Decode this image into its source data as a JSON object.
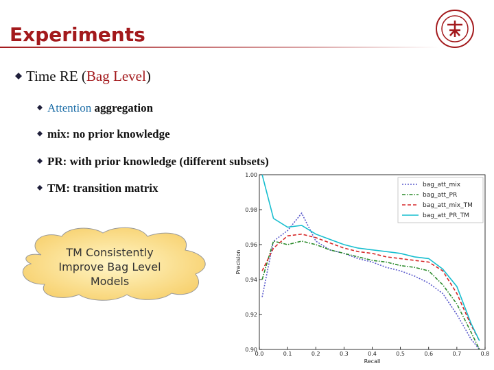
{
  "header": {
    "title": "Experiments"
  },
  "bullets": [
    {
      "parts": [
        "Time RE (",
        "Bag Level",
        ")"
      ],
      "level": 1
    },
    {
      "parts": [
        "Attention",
        " aggregation"
      ],
      "level": 2
    },
    {
      "parts": [
        "mix: no prior knowledge"
      ],
      "level": 2
    },
    {
      "parts": [
        "PR: with prior knowledge (different subsets)"
      ],
      "level": 2
    },
    {
      "parts": [
        "TM: transition matrix"
      ],
      "level": 2
    }
  ],
  "callout": {
    "lines": [
      "TM Consistently",
      "Improve Bag Level",
      "Models"
    ]
  },
  "chart_data": {
    "type": "line",
    "xlabel": "Recall",
    "ylabel": "Precision",
    "x": [
      0.01,
      0.05,
      0.1,
      0.15,
      0.2,
      0.25,
      0.3,
      0.35,
      0.4,
      0.45,
      0.5,
      0.55,
      0.6,
      0.65,
      0.7,
      0.75,
      0.78
    ],
    "series": [
      {
        "name": "bag_att_mix",
        "color": "#5a5acc",
        "dash": "2,2",
        "values": [
          0.93,
          0.962,
          0.968,
          0.978,
          0.962,
          0.957,
          0.955,
          0.952,
          0.95,
          0.947,
          0.945,
          0.942,
          0.938,
          0.932,
          0.92,
          0.906,
          0.9
        ]
      },
      {
        "name": "bag_att_PR",
        "color": "#2a8a2a",
        "dash": "5,2,1.5,2",
        "values": [
          0.94,
          0.962,
          0.96,
          0.962,
          0.96,
          0.957,
          0.955,
          0.953,
          0.951,
          0.95,
          0.948,
          0.947,
          0.945,
          0.937,
          0.926,
          0.91,
          0.9
        ]
      },
      {
        "name": "bag_att_mix_TM",
        "color": "#d62728",
        "dash": "5,3",
        "values": [
          0.945,
          0.958,
          0.965,
          0.966,
          0.964,
          0.961,
          0.958,
          0.956,
          0.955,
          0.953,
          0.952,
          0.951,
          0.95,
          0.945,
          0.932,
          0.914,
          0.905
        ]
      },
      {
        "name": "bag_att_PR_TM",
        "color": "#17becf",
        "dash": "",
        "values": [
          1.0,
          0.975,
          0.97,
          0.971,
          0.966,
          0.963,
          0.96,
          0.958,
          0.957,
          0.956,
          0.955,
          0.953,
          0.952,
          0.946,
          0.936,
          0.915,
          0.905
        ]
      }
    ],
    "xlim": [
      0,
      0.8
    ],
    "ylim": [
      0.9,
      1.0
    ],
    "xticks": [
      {
        "value": 0,
        "label": "0.0"
      },
      0.1,
      0.2,
      0.3,
      0.4,
      0.5,
      0.6,
      0.7,
      0.8
    ],
    "yticks": [
      {
        "value": 0.9,
        "label": "0.90"
      },
      0.92,
      0.94,
      0.96,
      0.98,
      {
        "value": 1.0,
        "label": "1.00"
      }
    ],
    "legend": "upper right"
  }
}
